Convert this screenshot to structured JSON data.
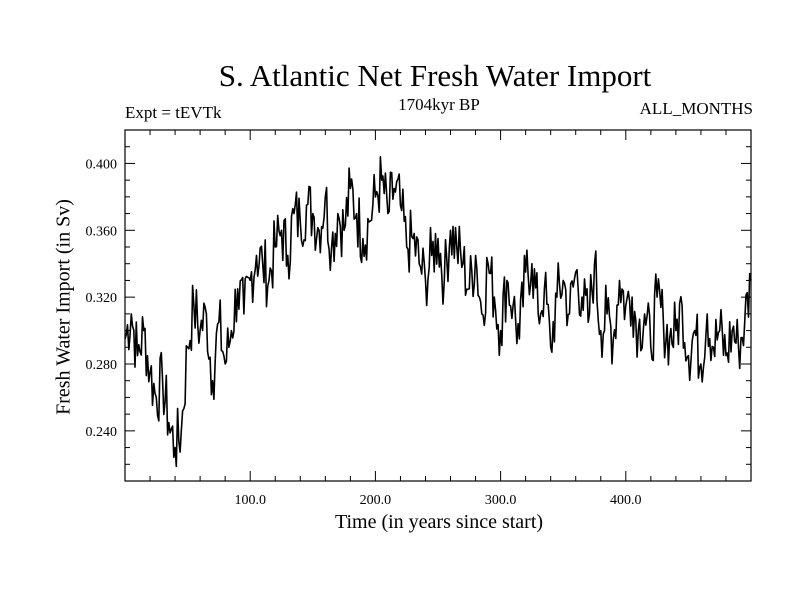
{
  "chart_data": {
    "type": "line",
    "title": "S. Atlantic Net Fresh Water Import",
    "subtitle_left": "Expt = tEVTk",
    "subtitle_center": "1704kyr BP",
    "subtitle_right": "ALL_MONTHS",
    "xlabel": "Time (in years since start)",
    "ylabel": "Fresh Water Import (in Sv)",
    "xlim": [
      0,
      500
    ],
    "ylim": [
      0.21,
      0.42
    ],
    "xticks": [
      100,
      200,
      300,
      400
    ],
    "xtick_labels": [
      "100.0",
      "200.0",
      "300.0",
      "400.0"
    ],
    "yticks": [
      0.24,
      0.28,
      0.32,
      0.36,
      0.4
    ],
    "ytick_labels": [
      "0.240",
      "0.280",
      "0.320",
      "0.360",
      "0.400"
    ],
    "grid": false,
    "series": [
      {
        "name": "Fresh Water Import",
        "color": "#000000",
        "x": [
          0,
          5,
          10,
          15,
          20,
          25,
          30,
          35,
          40,
          45,
          50,
          55,
          60,
          65,
          70,
          75,
          80,
          85,
          90,
          95,
          100,
          105,
          110,
          115,
          120,
          125,
          130,
          135,
          140,
          145,
          150,
          155,
          160,
          165,
          170,
          175,
          180,
          185,
          190,
          195,
          200,
          205,
          210,
          215,
          220,
          225,
          230,
          235,
          240,
          245,
          250,
          255,
          260,
          265,
          270,
          275,
          280,
          285,
          290,
          295,
          300,
          305,
          310,
          315,
          320,
          325,
          330,
          335,
          340,
          345,
          350,
          355,
          360,
          365,
          370,
          375,
          380,
          385,
          390,
          395,
          400,
          405,
          410,
          415,
          420,
          425,
          430,
          435,
          440,
          445,
          450,
          455,
          460,
          465,
          470,
          475,
          480,
          485,
          490,
          495,
          500
        ],
        "values": [
          0.295,
          0.31,
          0.285,
          0.3,
          0.275,
          0.26,
          0.27,
          0.245,
          0.23,
          0.24,
          0.29,
          0.315,
          0.3,
          0.31,
          0.27,
          0.305,
          0.28,
          0.3,
          0.325,
          0.31,
          0.33,
          0.345,
          0.34,
          0.33,
          0.35,
          0.36,
          0.345,
          0.37,
          0.365,
          0.375,
          0.37,
          0.36,
          0.38,
          0.35,
          0.37,
          0.36,
          0.385,
          0.37,
          0.355,
          0.365,
          0.38,
          0.39,
          0.37,
          0.385,
          0.375,
          0.35,
          0.355,
          0.34,
          0.33,
          0.345,
          0.355,
          0.33,
          0.36,
          0.35,
          0.34,
          0.325,
          0.345,
          0.31,
          0.34,
          0.32,
          0.3,
          0.33,
          0.315,
          0.295,
          0.335,
          0.34,
          0.31,
          0.325,
          0.29,
          0.32,
          0.33,
          0.31,
          0.335,
          0.32,
          0.305,
          0.34,
          0.3,
          0.31,
          0.295,
          0.33,
          0.315,
          0.32,
          0.3,
          0.31,
          0.29,
          0.32,
          0.305,
          0.295,
          0.3,
          0.315,
          0.285,
          0.3,
          0.28,
          0.31,
          0.29,
          0.3,
          0.285,
          0.3,
          0.29,
          0.305,
          0.33
        ]
      }
    ]
  }
}
